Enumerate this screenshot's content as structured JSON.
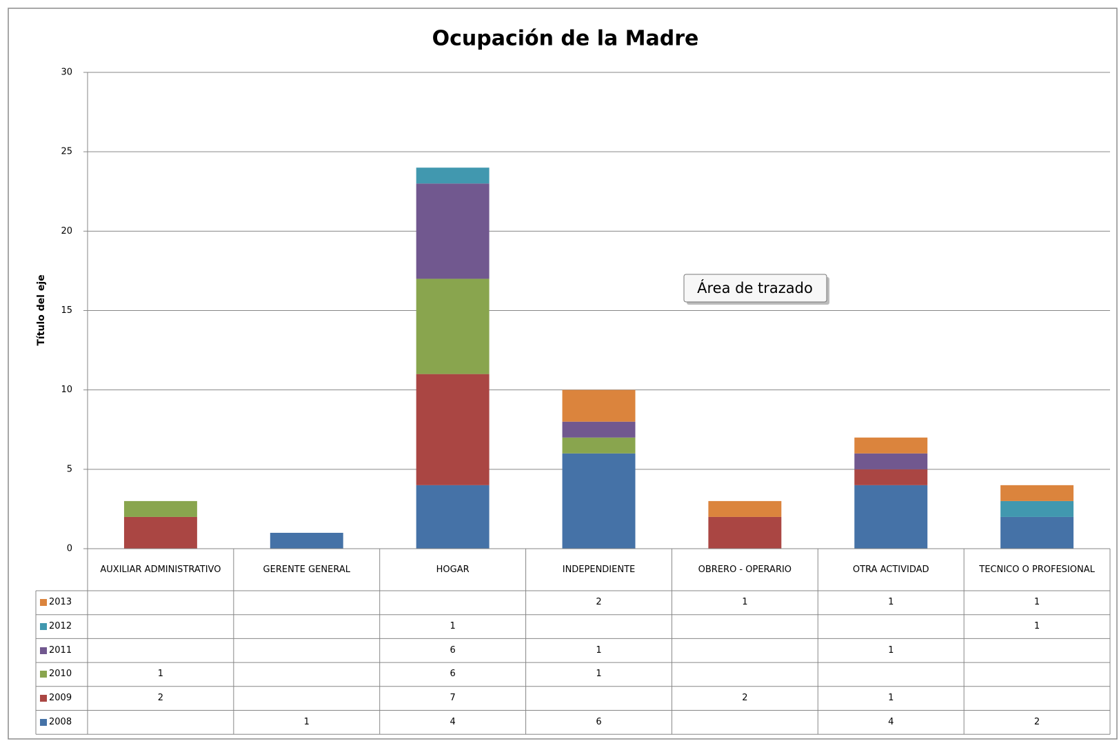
{
  "chart_data": {
    "type": "bar",
    "stacked": true,
    "title": "Ocupación de la Madre",
    "ylabel": "Título del eje",
    "annotation": "Área de trazado",
    "categories": [
      "AUXILIAR ADMINISTRATIVO",
      "GERENTE GENERAL",
      "HOGAR",
      "INDEPENDIENTE",
      "OBRERO - OPERARIO",
      "OTRA ACTIVIDAD",
      "TECNICO O PROFESIONAL"
    ],
    "series": [
      {
        "name": "2008",
        "color": "#4572a7",
        "values": [
          null,
          1,
          4,
          6,
          null,
          4,
          2
        ]
      },
      {
        "name": "2009",
        "color": "#aa4643",
        "values": [
          2,
          null,
          7,
          null,
          2,
          1,
          null
        ]
      },
      {
        "name": "2010",
        "color": "#89a54e",
        "values": [
          1,
          null,
          6,
          1,
          null,
          null,
          null
        ]
      },
      {
        "name": "2011",
        "color": "#71588f",
        "values": [
          null,
          null,
          6,
          1,
          null,
          1,
          null
        ]
      },
      {
        "name": "2012",
        "color": "#4198af",
        "values": [
          null,
          null,
          1,
          null,
          null,
          null,
          1
        ]
      },
      {
        "name": "2013",
        "color": "#db843d",
        "values": [
          null,
          null,
          null,
          2,
          1,
          1,
          1
        ]
      }
    ],
    "ylim": [
      0,
      30
    ],
    "yticks": [
      0,
      5,
      10,
      15,
      20,
      25,
      30
    ],
    "grid": true,
    "data_table": true
  }
}
